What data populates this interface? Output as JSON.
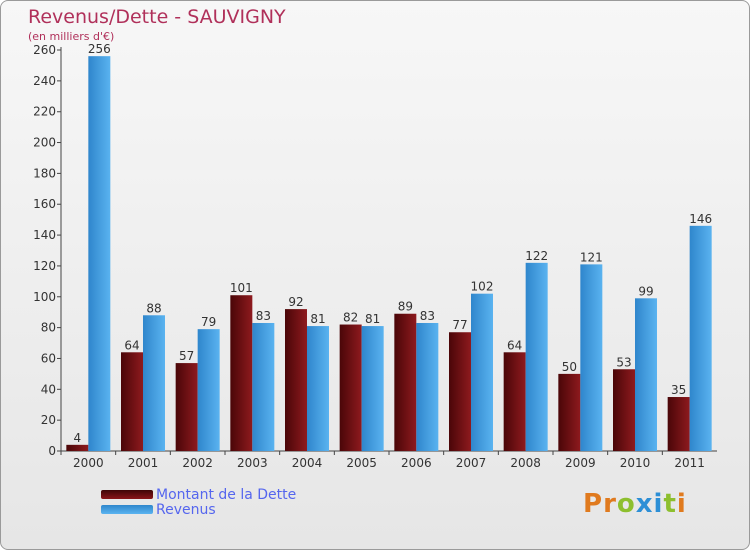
{
  "title": "Revenus/Dette - SAUVIGNY",
  "subtitle": "(en milliers d'€)",
  "logo_text": "Proxiti",
  "colors": {
    "debt": "#6e0e12",
    "revenue": "#3f9fe4",
    "title": "#b0305a",
    "legend_text": "#5566ee"
  },
  "chart_data": {
    "type": "bar",
    "categories": [
      "2000",
      "2001",
      "2002",
      "2003",
      "2004",
      "2005",
      "2006",
      "2007",
      "2008",
      "2009",
      "2010",
      "2011"
    ],
    "series": [
      {
        "name": "Montant de la Dette",
        "values": [
          4,
          64,
          57,
          101,
          92,
          82,
          89,
          77,
          64,
          50,
          53,
          35
        ]
      },
      {
        "name": "Revenus",
        "values": [
          256,
          88,
          79,
          83,
          81,
          81,
          83,
          102,
          122,
          121,
          99,
          146
        ]
      }
    ],
    "yticks": [
      0,
      20,
      40,
      60,
      80,
      100,
      120,
      140,
      160,
      180,
      200,
      220,
      240,
      260
    ],
    "ylim": [
      0,
      260
    ],
    "grid": false,
    "legend_position": "bottom-left"
  }
}
